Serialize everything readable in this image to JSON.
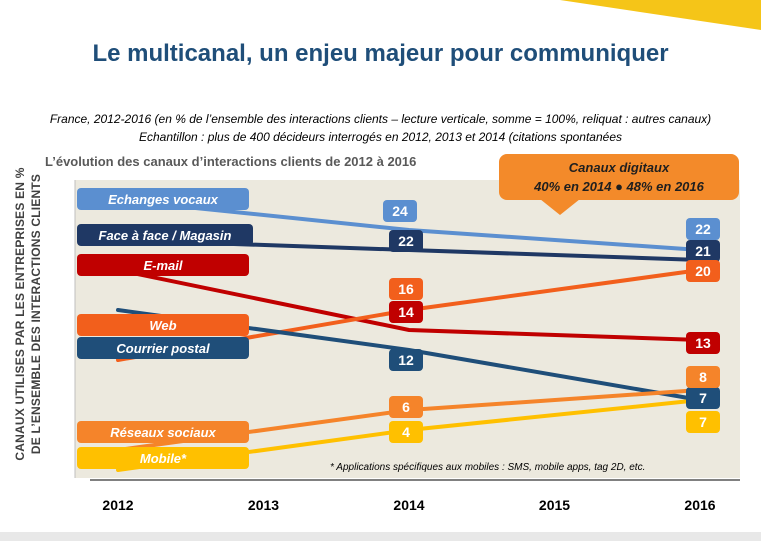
{
  "header": {
    "title": "Le multicanal, un enjeu majeur pour communiquer",
    "subtitle1": "France, 2012-2016 (en % de l’ensemble des interactions clients – lecture verticale, somme = 100%, reliquat : autres canaux)",
    "subtitle2": "Echantillon : plus de 400 décideurs interrogés en 2012, 2013 et 2014 (citations spontanées"
  },
  "chart_data": {
    "type": "line",
    "title": "L’évolution des canaux d’interactions clients de 2012 à 2016",
    "ylabel": "CANAUX UTILISES PAR LES ENTREPRISES EN % DE L’ENSEMBLE DES INTERACTIONS CLIENTS",
    "xlabel": "",
    "x": [
      2012,
      2013,
      2014,
      2015,
      2016
    ],
    "series": [
      {
        "name": "Echanges vocaux",
        "color": "#5b8fd0",
        "points": [
          [
            2012,
            27
          ],
          [
            2014,
            24
          ],
          [
            2016,
            22
          ]
        ],
        "labels": [
          "24",
          "22"
        ],
        "label_text_color": "#ffffff"
      },
      {
        "name": "Face à face / Magasin",
        "color": "#1f3864",
        "points": [
          [
            2012,
            23
          ],
          [
            2014,
            22
          ],
          [
            2016,
            21
          ]
        ],
        "labels": [
          "22",
          "21"
        ],
        "label_text_color": "#ffffff"
      },
      {
        "name": "E-mail",
        "color": "#c00000",
        "points": [
          [
            2012,
            20
          ],
          [
            2014,
            14
          ],
          [
            2016,
            13
          ]
        ],
        "labels": [
          "14",
          "13"
        ],
        "label_text_color": "#ffffff"
      },
      {
        "name": "Web",
        "color": "#f25f1c",
        "points": [
          [
            2012,
            11
          ],
          [
            2014,
            16
          ],
          [
            2016,
            20
          ]
        ],
        "labels": [
          "16",
          "20"
        ],
        "label_text_color": "#ffffff"
      },
      {
        "name": "Courrier postal",
        "color": "#1f4e79",
        "points": [
          [
            2012,
            16
          ],
          [
            2014,
            12
          ],
          [
            2016,
            7
          ]
        ],
        "labels": [
          "12",
          "7"
        ],
        "label_text_color": "#ffffff"
      },
      {
        "name": "Réseaux sociaux",
        "color": "#f5842a",
        "points": [
          [
            2012,
            2
          ],
          [
            2014,
            6
          ],
          [
            2016,
            8
          ]
        ],
        "labels": [
          "6",
          "8"
        ],
        "label_text_color": "#ffffff"
      },
      {
        "name": "Mobile*",
        "color": "#ffc000",
        "points": [
          [
            2012,
            0
          ],
          [
            2014,
            4
          ],
          [
            2016,
            7
          ]
        ],
        "labels": [
          "4",
          "7"
        ],
        "label_text_color": "#ffffff"
      }
    ],
    "annotation": {
      "line1": "Canaux digitaux",
      "line2": "40% en 2014 ● 48% en 2016",
      "color": "#f38a2a"
    },
    "footnote": "* Applications spécifiques aux mobiles : SMS, mobile apps, tag 2D, etc.",
    "grid": false,
    "legend": "inline labels at left"
  }
}
